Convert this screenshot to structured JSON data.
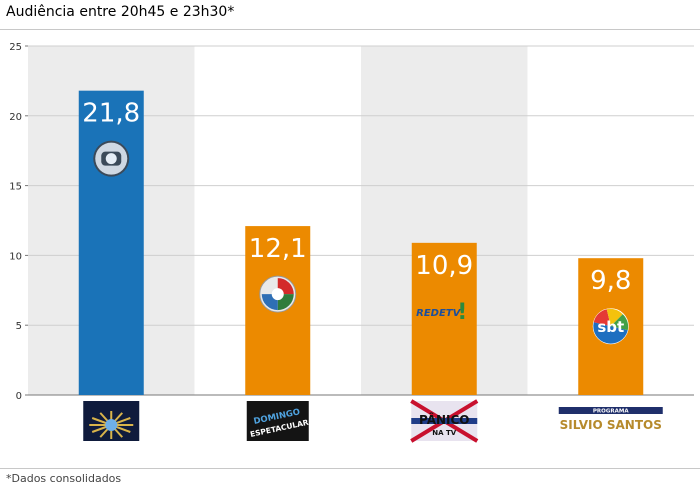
{
  "title": "Audiência entre 20h45 e 23h30*",
  "footnote": "*Dados consolidados",
  "colors": {
    "globo": "#1a73b8",
    "others": "#ec8a00",
    "band": "#ececec",
    "grid": "#cfcfcf",
    "axis": "#777777"
  },
  "chart_data": {
    "type": "bar",
    "title": "Audiência entre 20h45 e 23h30*",
    "xlabel": "",
    "ylabel": "",
    "ylim": [
      0,
      25
    ],
    "yticks": [
      0,
      5,
      10,
      15,
      20,
      25
    ],
    "grid": true,
    "categories": [
      "Fantástico",
      "Domingo Espetacular",
      "Pânico na TV",
      "Programa Silvio Santos"
    ],
    "values": [
      21.8,
      12.1,
      10.9,
      9.8
    ],
    "value_labels": [
      "21,8",
      "12,1",
      "10,9",
      "9,8"
    ],
    "networks": [
      "Globo",
      "Record",
      "RedeTV!",
      "SBT"
    ],
    "network_icons": [
      "globo-logo-icon",
      "record-logo-icon",
      "redetv-logo-icon",
      "sbt-logo-icon"
    ],
    "program_icons": [
      "fantastico-logo-icon",
      "domingo-espetacular-logo-icon",
      "panico-na-tv-logo-icon",
      "programa-silvio-santos-logo-icon"
    ],
    "bar_colors": [
      "#1a73b8",
      "#ec8a00",
      "#ec8a00",
      "#ec8a00"
    ],
    "logo_text": {
      "domingo_espetacular": [
        "DOMINGO",
        "ESPETACULAR"
      ],
      "panico": [
        "PÂNICO",
        "NA TV"
      ],
      "silvio_santos": [
        "PROGRAMA",
        "SILVIO SANTOS"
      ],
      "redetv": "REDETV",
      "sbt": "sbt"
    }
  }
}
